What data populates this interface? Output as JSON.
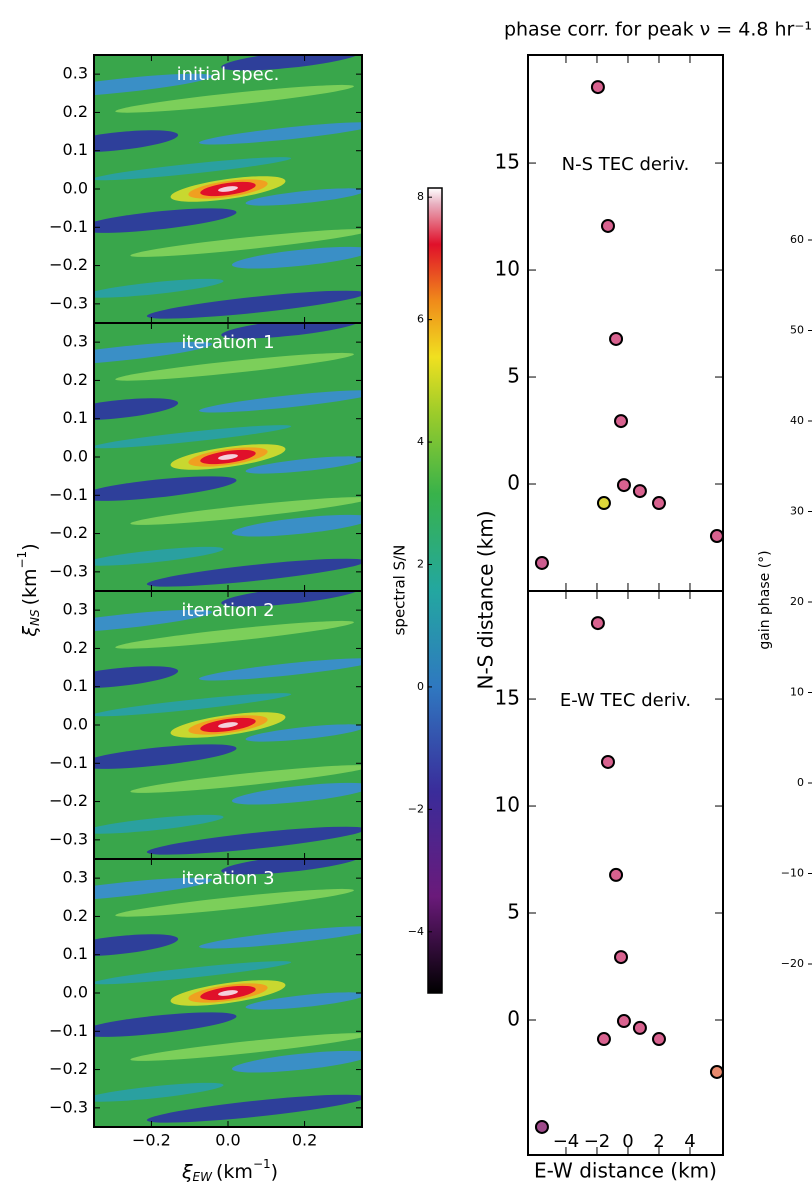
{
  "chart_data": [
    {
      "type": "heatmap",
      "panels": [
        "initial spec.",
        "iteration 1",
        "iteration 2",
        "iteration 3"
      ],
      "xlabel": {
        "symbol": "ξ",
        "subscript": "EW",
        "unit": "(km",
        "power": "−1",
        "close": ")"
      },
      "ylabel": {
        "symbol": "ξ",
        "subscript": "NS",
        "unit": "(km",
        "power": "−1",
        "close": ")"
      },
      "xlim": [
        -0.35,
        0.35
      ],
      "xticks": [
        {
          "value": -0.2,
          "label": "−0.2"
        },
        {
          "value": 0,
          "label": "0.0"
        },
        0.2
      ],
      "ylim": [
        -0.35,
        0.35
      ],
      "yticks": [
        {
          "value": -0.3,
          "label": "−0.3"
        },
        {
          "value": -0.2,
          "label": "−0.2"
        },
        {
          "value": -0.1,
          "label": "−0.1"
        },
        {
          "value": 0,
          "label": "0.0"
        },
        0.1,
        0.2,
        0.3
      ]
    },
    {
      "type": "colorbar",
      "label": "spectral S/N",
      "ylim": [
        -5,
        8.15
      ],
      "yticks": [
        {
          "value": -4,
          "label": "−4"
        },
        {
          "value": -2,
          "label": "−2"
        },
        0,
        2,
        4,
        6,
        8
      ]
    },
    {
      "type": "scatter",
      "title": "phase corr. for peak ν = 4.8 hr⁻¹",
      "xlabel": "E-W distance (km)",
      "ylabel": "N-S distance (km)",
      "xlim": [
        -6.45,
        6.13
      ],
      "xticks": [
        {
          "value": -4,
          "label": "−4"
        },
        {
          "value": -2,
          "label": "−2"
        },
        0,
        2,
        4
      ],
      "yticks": [
        0,
        5,
        10,
        15
      ],
      "panels": [
        {
          "label": "N-S TEC deriv.",
          "ylim": [
            -5,
            20.05
          ],
          "x": [
            -1.94,
            -1.29,
            -0.77,
            -0.45,
            -0.26,
            0.77,
            2.0,
            -1.55,
            5.74,
            -5.55
          ],
          "y": [
            18.55,
            12.06,
            6.78,
            2.94,
            -0.05,
            -0.33,
            -0.89,
            -0.89,
            -2.43,
            -3.69
          ],
          "colors": [
            "#d8628f",
            "#d8628f",
            "#d8628f",
            "#d8628f",
            "#d8628f",
            "#d8628f",
            "#d8628f",
            "#dcd63a",
            "#d8628f",
            "#cc5c8f"
          ]
        },
        {
          "label": "E-W TEC deriv.",
          "ylim": [
            -6.31,
            20.05
          ],
          "x": [
            -1.94,
            -1.29,
            -0.77,
            -0.45,
            -0.26,
            0.77,
            2.0,
            -1.55,
            5.74,
            -5.55
          ],
          "y": [
            18.55,
            12.06,
            6.78,
            2.94,
            -0.05,
            -0.37,
            -0.89,
            -0.89,
            -2.43,
            -5.0
          ],
          "colors": [
            "#d8628f",
            "#d8628f",
            "#d8628f",
            "#d8628f",
            "#d8628f",
            "#d8628f",
            "#d8628f",
            "#d8628f",
            "#e98a6e",
            "#9e4a8a"
          ]
        }
      ]
    },
    {
      "type": "line",
      "ylabel": "gain phase (°)",
      "ylim": [
        -40,
        80
      ],
      "yticks": [
        {
          "value": -20,
          "label": "−20"
        },
        {
          "value": -10,
          "label": "−10"
        },
        0,
        10,
        20,
        30,
        40,
        50,
        60
      ]
    }
  ]
}
